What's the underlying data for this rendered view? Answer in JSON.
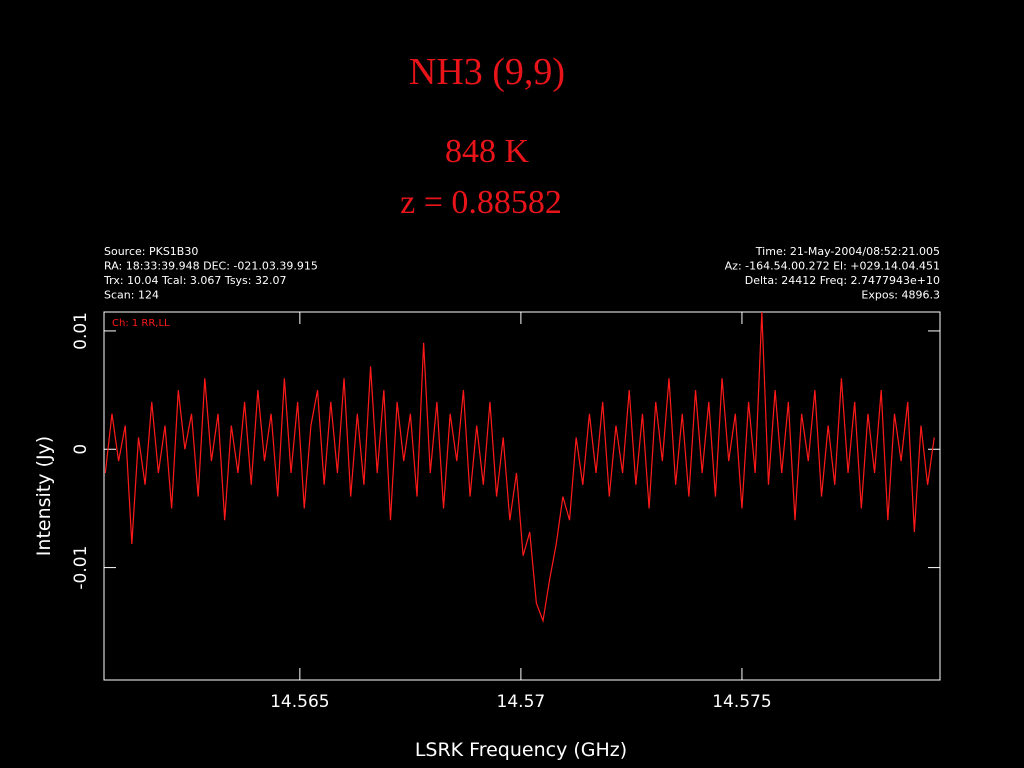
{
  "chart_data": {
    "type": "line",
    "title": "NH3 (9,9)",
    "subtitle": [
      "848 K",
      "z = 0.88582"
    ],
    "header": {
      "left": [
        "Source: PKS1B30",
        "RA: 18:33:39.948  DEC: -021.03.39.915",
        "Trx: 10.04  Tcal: 3.067  Tsys: 32.07",
        "Scan: 124"
      ],
      "right": [
        "Time: 21-May-2004/08:52:21.005",
        "Az: -164.54.00.272  El: +029.14.04.451",
        "Delta: 24412  Freq: 2.7477943e+10",
        "Expos: 4896.3"
      ]
    },
    "x_label": "LSRK Frequency (GHz)",
    "y_label": "Intensity (Jy)",
    "xlim": [
      14.56057,
      14.57948
    ],
    "ylim": [
      -0.0195,
      0.0116
    ],
    "xticks": [
      14.565,
      14.57,
      14.575
    ],
    "yticks": [
      -0.01,
      0,
      0.01
    ],
    "x": [
      14.5606,
      14.56075,
      14.5609,
      14.56105,
      14.5612,
      14.56135,
      14.5615,
      14.56165,
      14.5618,
      14.56195,
      14.5621,
      14.56225,
      14.5624,
      14.56255,
      14.5627,
      14.56285,
      14.563,
      14.56315,
      14.5633,
      14.56345,
      14.5636,
      14.56375,
      14.5639,
      14.56405,
      14.5642,
      14.56435,
      14.5645,
      14.56465,
      14.5648,
      14.56495,
      14.5651,
      14.56525,
      14.5654,
      14.56555,
      14.5657,
      14.56585,
      14.566,
      14.56615,
      14.5663,
      14.56645,
      14.5666,
      14.56675,
      14.5669,
      14.56705,
      14.5672,
      14.56735,
      14.5675,
      14.56765,
      14.5678,
      14.56795,
      14.5681,
      14.56825,
      14.5684,
      14.56855,
      14.5687,
      14.56885,
      14.569,
      14.56915,
      14.5693,
      14.56945,
      14.5696,
      14.56975,
      14.5699,
      14.57005,
      14.5702,
      14.57035,
      14.5705,
      14.57065,
      14.5708,
      14.57095,
      14.5711,
      14.57125,
      14.5714,
      14.57155,
      14.5717,
      14.57185,
      14.572,
      14.57215,
      14.5723,
      14.57245,
      14.5726,
      14.57275,
      14.5729,
      14.57305,
      14.5732,
      14.57335,
      14.5735,
      14.57365,
      14.5738,
      14.57395,
      14.5741,
      14.57425,
      14.5744,
      14.57455,
      14.5747,
      14.57485,
      14.575,
      14.57515,
      14.5753,
      14.57545,
      14.5756,
      14.57575,
      14.5759,
      14.57605,
      14.5762,
      14.57635,
      14.5765,
      14.57665,
      14.5768,
      14.57695,
      14.5771,
      14.57725,
      14.5774,
      14.57755,
      14.5777,
      14.57785,
      14.578,
      14.57815,
      14.5783,
      14.57845,
      14.5786,
      14.57875,
      14.5789,
      14.57905,
      14.5792,
      14.57935
    ],
    "series": [
      {
        "name": "Ch: 1 RR,LL",
        "color": "#ff1a1a",
        "values": [
          -0.002,
          0.003,
          -0.001,
          0.002,
          -0.008,
          0.001,
          -0.003,
          0.004,
          -0.002,
          0.002,
          -0.005,
          0.005,
          0.0,
          0.003,
          -0.004,
          0.006,
          -0.001,
          0.003,
          -0.006,
          0.002,
          -0.002,
          0.004,
          -0.003,
          0.005,
          -0.001,
          0.003,
          -0.004,
          0.006,
          -0.002,
          0.004,
          -0.005,
          0.002,
          0.005,
          -0.003,
          0.004,
          -0.002,
          0.006,
          -0.004,
          0.003,
          -0.003,
          0.007,
          -0.002,
          0.005,
          -0.006,
          0.004,
          -0.001,
          0.003,
          -0.004,
          0.009,
          -0.002,
          0.004,
          -0.005,
          0.003,
          -0.001,
          0.005,
          -0.004,
          0.002,
          -0.003,
          0.004,
          -0.004,
          0.001,
          -0.006,
          -0.002,
          -0.009,
          -0.007,
          -0.013,
          -0.0145,
          -0.011,
          -0.008,
          -0.004,
          -0.006,
          0.001,
          -0.003,
          0.003,
          -0.002,
          0.004,
          -0.004,
          0.002,
          -0.002,
          0.005,
          -0.003,
          0.003,
          -0.005,
          0.004,
          -0.001,
          0.006,
          -0.003,
          0.003,
          -0.004,
          0.005,
          -0.002,
          0.004,
          -0.004,
          0.006,
          -0.001,
          0.003,
          -0.005,
          0.004,
          -0.002,
          0.0116,
          -0.003,
          0.005,
          -0.002,
          0.004,
          -0.006,
          0.003,
          -0.001,
          0.005,
          -0.004,
          0.002,
          -0.003,
          0.006,
          -0.002,
          0.004,
          -0.005,
          0.003,
          -0.002,
          0.005,
          -0.006,
          0.003,
          -0.001,
          0.004,
          -0.007,
          0.002,
          -0.003,
          0.001
        ]
      }
    ]
  }
}
